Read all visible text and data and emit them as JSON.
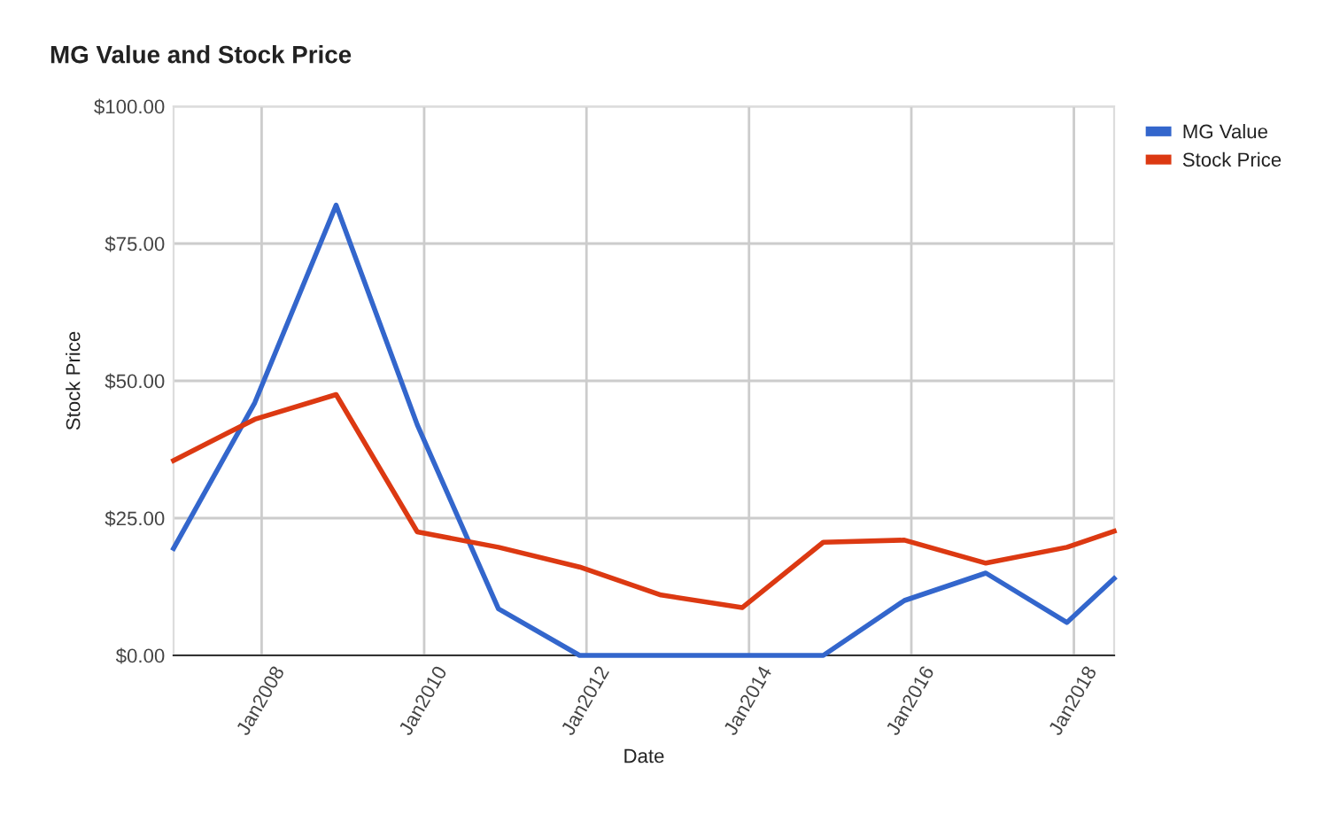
{
  "chart_data": {
    "type": "line",
    "title": "MG Value and Stock Price",
    "xlabel": "Date",
    "ylabel": "Stock Price",
    "x": [
      "2006-12",
      "2007-12",
      "2008-12",
      "2009-12",
      "2010-12",
      "2011-12",
      "2012-12",
      "2013-12",
      "2014-12",
      "2015-12",
      "2016-12",
      "2017-12",
      "2018-07"
    ],
    "series": [
      {
        "name": "MG Value",
        "color": "#3366cc",
        "values": [
          19.5,
          46,
          82,
          42,
          8.5,
          0,
          0,
          0,
          0,
          10,
          15,
          6,
          14
        ]
      },
      {
        "name": "Stock Price",
        "color": "#dc3912",
        "values": [
          35.5,
          43,
          47.5,
          22.5,
          19.7,
          16.1,
          11,
          8.7,
          20.6,
          21,
          16.8,
          19.7,
          22.6
        ]
      }
    ],
    "xlim": [
      "2006-12",
      "2018-07"
    ],
    "xticks": [
      {
        "value": "2008-01",
        "label": "Jan2008"
      },
      {
        "value": "2010-01",
        "label": "Jan2010"
      },
      {
        "value": "2012-01",
        "label": "Jan2012"
      },
      {
        "value": "2014-01",
        "label": "Jan2014"
      },
      {
        "value": "2016-01",
        "label": "Jan2016"
      },
      {
        "value": "2018-01",
        "label": "Jan2018"
      }
    ],
    "ylim": [
      0,
      100
    ],
    "yticks": [
      {
        "value": 0,
        "label": "$0.00"
      },
      {
        "value": 25,
        "label": "$25.00"
      },
      {
        "value": 50,
        "label": "$50.00"
      },
      {
        "value": 75,
        "label": "$75.00"
      },
      {
        "value": 100,
        "label": "$100.00"
      }
    ],
    "grid": true,
    "legend": "top right",
    "marker": "none",
    "line_style": "solid"
  }
}
